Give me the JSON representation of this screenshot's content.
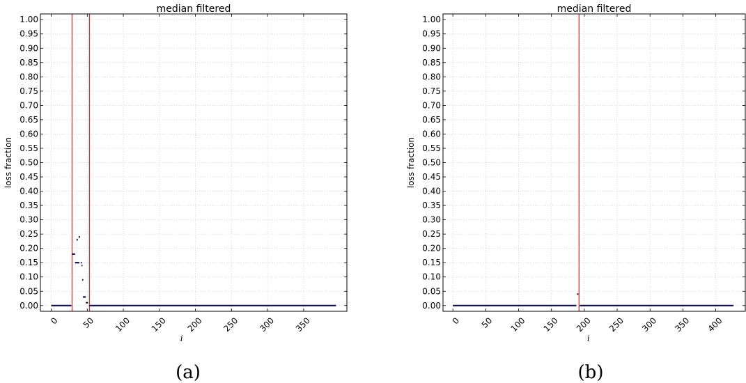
{
  "chart_data": [
    {
      "type": "scatter",
      "panel": "a",
      "title": "median filtered",
      "xlabel": "i",
      "ylabel": "loss fraction",
      "caption": "(a)",
      "xlim": [
        -15,
        410
      ],
      "ylim": [
        -0.02,
        1.02
      ],
      "xticks": [
        0,
        50,
        100,
        150,
        200,
        250,
        300,
        350
      ],
      "xtick_labels": [
        "0",
        "50",
        "100",
        "150",
        "200",
        "250",
        "300",
        "350"
      ],
      "yticks": [
        0,
        0.05,
        0.1,
        0.15,
        0.2,
        0.25,
        0.3,
        0.35,
        0.4,
        0.45,
        0.5,
        0.55,
        0.6,
        0.65,
        0.7,
        0.75,
        0.8,
        0.85,
        0.9,
        0.95,
        1.0
      ],
      "ytick_labels": [
        "0.00",
        "0.05",
        "0.10",
        "0.15",
        "0.20",
        "0.25",
        "0.30",
        "0.35",
        "0.40",
        "0.45",
        "0.50",
        "0.55",
        "0.60",
        "0.65",
        "0.70",
        "0.75",
        "0.80",
        "0.85",
        "0.90",
        "0.95",
        "1.00"
      ],
      "grid": true,
      "vlines": [
        29,
        53
      ],
      "segments": [
        {
          "x": [
            0,
            28
          ],
          "y": 0.0
        },
        {
          "x": [
            29,
            33
          ],
          "y": 0.18
        },
        {
          "x": [
            33,
            39
          ],
          "y": 0.15
        },
        {
          "x": [
            35,
            37
          ],
          "y": 0.23
        },
        {
          "x": [
            38,
            40
          ],
          "y": 0.24
        },
        {
          "x": [
            41,
            42
          ],
          "y": 0.15
        },
        {
          "x": [
            42,
            43
          ],
          "y": 0.14
        },
        {
          "x": [
            43,
            44
          ],
          "y": 0.09
        },
        {
          "x": [
            44,
            48
          ],
          "y": 0.03
        },
        {
          "x": [
            48,
            51
          ],
          "y": 0.01
        },
        {
          "x": [
            53,
            395
          ],
          "y": 0.0
        }
      ]
    },
    {
      "type": "scatter",
      "panel": "b",
      "title": "median filtered",
      "xlabel": "i",
      "ylabel": "loss fraction",
      "caption": "(b)",
      "xlim": [
        -15,
        445
      ],
      "ylim": [
        -0.02,
        1.02
      ],
      "xticks": [
        0,
        50,
        100,
        150,
        200,
        250,
        300,
        350,
        400
      ],
      "xtick_labels": [
        "0",
        "50",
        "100",
        "150",
        "200",
        "250",
        "300",
        "350",
        "400"
      ],
      "yticks": [
        0,
        0.05,
        0.1,
        0.15,
        0.2,
        0.25,
        0.3,
        0.35,
        0.4,
        0.45,
        0.5,
        0.55,
        0.6,
        0.65,
        0.7,
        0.75,
        0.8,
        0.85,
        0.9,
        0.95,
        1.0
      ],
      "ytick_labels": [
        "0.00",
        "0.05",
        "0.10",
        "0.15",
        "0.20",
        "0.25",
        "0.30",
        "0.35",
        "0.40",
        "0.45",
        "0.50",
        "0.55",
        "0.60",
        "0.65",
        "0.70",
        "0.75",
        "0.80",
        "0.85",
        "0.90",
        "0.95",
        "1.00"
      ],
      "grid": true,
      "vlines": [
        192
      ],
      "segments": [
        {
          "x": [
            0,
            188
          ],
          "y": 0.0
        },
        {
          "x": [
            189,
            191
          ],
          "y": 0.04
        },
        {
          "x": [
            193,
            427
          ],
          "y": 0.0
        }
      ]
    }
  ]
}
